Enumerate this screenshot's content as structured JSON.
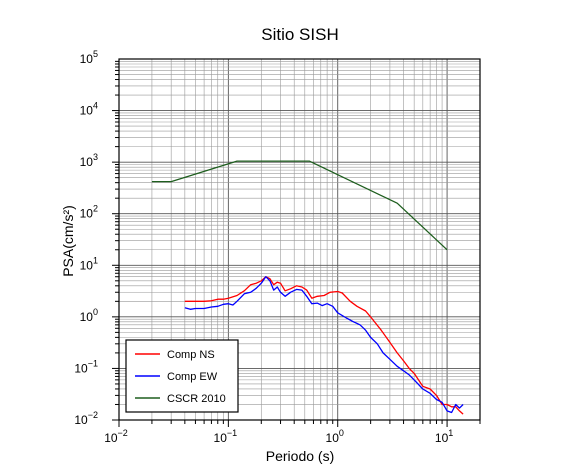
{
  "chart_data": {
    "type": "line",
    "title": "Sitio SISH",
    "xlabel": "Periodo (s)",
    "ylabel": "PSA(cm/s²)",
    "xscale": "log",
    "yscale": "log",
    "xlim": [
      0.01,
      20
    ],
    "ylim": [
      0.01,
      100000
    ],
    "grid": true,
    "legend_position": "bottom-left",
    "x_ticks": [
      {
        "value": 0.01,
        "base": "10",
        "exp": "−2"
      },
      {
        "value": 0.1,
        "base": "10",
        "exp": "−1"
      },
      {
        "value": 1,
        "base": "10",
        "exp": "0"
      },
      {
        "value": 10,
        "base": "10",
        "exp": "1"
      }
    ],
    "y_ticks": [
      {
        "value": 0.01,
        "base": "10",
        "exp": "−2"
      },
      {
        "value": 0.1,
        "base": "10",
        "exp": "−1"
      },
      {
        "value": 1,
        "base": "10",
        "exp": "0"
      },
      {
        "value": 10,
        "base": "10",
        "exp": "1"
      },
      {
        "value": 100,
        "base": "10",
        "exp": "2"
      },
      {
        "value": 1000,
        "base": "10",
        "exp": "3"
      },
      {
        "value": 10000,
        "base": "10",
        "exp": "4"
      },
      {
        "value": 100000,
        "base": "10",
        "exp": "5"
      }
    ],
    "series": [
      {
        "name": "Comp NS",
        "color": "#ff0000",
        "points": [
          [
            0.04,
            2.0
          ],
          [
            0.05,
            2.0
          ],
          [
            0.06,
            2.0
          ],
          [
            0.07,
            2.05
          ],
          [
            0.08,
            2.2
          ],
          [
            0.09,
            2.2
          ],
          [
            0.1,
            2.3
          ],
          [
            0.12,
            2.6
          ],
          [
            0.14,
            3.2
          ],
          [
            0.16,
            4.2
          ],
          [
            0.18,
            4.5
          ],
          [
            0.2,
            5.0
          ],
          [
            0.22,
            6.0
          ],
          [
            0.24,
            5.5
          ],
          [
            0.26,
            4.2
          ],
          [
            0.28,
            4.7
          ],
          [
            0.3,
            4.5
          ],
          [
            0.33,
            3.2
          ],
          [
            0.37,
            3.5
          ],
          [
            0.42,
            4.0
          ],
          [
            0.47,
            3.8
          ],
          [
            0.52,
            3.3
          ],
          [
            0.58,
            2.3
          ],
          [
            0.65,
            2.5
          ],
          [
            0.75,
            2.6
          ],
          [
            0.85,
            3.0
          ],
          [
            1.0,
            3.1
          ],
          [
            1.1,
            2.9
          ],
          [
            1.3,
            2.0
          ],
          [
            1.5,
            1.6
          ],
          [
            1.8,
            1.3
          ],
          [
            2.0,
            1.0
          ],
          [
            2.5,
            0.55
          ],
          [
            3.0,
            0.32
          ],
          [
            3.5,
            0.2
          ],
          [
            4.0,
            0.14
          ],
          [
            4.5,
            0.1
          ],
          [
            5.0,
            0.08
          ],
          [
            6.0,
            0.045
          ],
          [
            7.0,
            0.04
          ],
          [
            8.0,
            0.03
          ],
          [
            9.0,
            0.02
          ],
          [
            10.0,
            0.02
          ],
          [
            11.0,
            0.018
          ],
          [
            12.0,
            0.018
          ],
          [
            13.0,
            0.015
          ],
          [
            14.0,
            0.013
          ]
        ]
      },
      {
        "name": "Comp EW",
        "color": "#0000ff",
        "points": [
          [
            0.04,
            1.5
          ],
          [
            0.045,
            1.4
          ],
          [
            0.05,
            1.45
          ],
          [
            0.06,
            1.45
          ],
          [
            0.07,
            1.55
          ],
          [
            0.08,
            1.6
          ],
          [
            0.09,
            1.75
          ],
          [
            0.1,
            1.8
          ],
          [
            0.11,
            1.7
          ],
          [
            0.12,
            2.0
          ],
          [
            0.14,
            2.8
          ],
          [
            0.16,
            3.0
          ],
          [
            0.18,
            3.6
          ],
          [
            0.2,
            4.5
          ],
          [
            0.22,
            6.0
          ],
          [
            0.24,
            5.0
          ],
          [
            0.26,
            3.3
          ],
          [
            0.28,
            3.8
          ],
          [
            0.3,
            3.0
          ],
          [
            0.33,
            2.5
          ],
          [
            0.37,
            3.0
          ],
          [
            0.42,
            3.4
          ],
          [
            0.47,
            3.3
          ],
          [
            0.52,
            2.5
          ],
          [
            0.58,
            1.8
          ],
          [
            0.65,
            1.85
          ],
          [
            0.72,
            1.65
          ],
          [
            0.8,
            1.8
          ],
          [
            0.9,
            1.6
          ],
          [
            1.0,
            1.2
          ],
          [
            1.2,
            0.95
          ],
          [
            1.4,
            0.8
          ],
          [
            1.6,
            0.7
          ],
          [
            1.8,
            0.55
          ],
          [
            2.0,
            0.4
          ],
          [
            2.3,
            0.3
          ],
          [
            2.6,
            0.2
          ],
          [
            3.0,
            0.15
          ],
          [
            3.5,
            0.11
          ],
          [
            4.0,
            0.09
          ],
          [
            4.5,
            0.075
          ],
          [
            5.0,
            0.06
          ],
          [
            6.0,
            0.04
          ],
          [
            7.0,
            0.033
          ],
          [
            8.0,
            0.025
          ],
          [
            9.0,
            0.022
          ],
          [
            10.0,
            0.015
          ],
          [
            11.0,
            0.014
          ],
          [
            12.0,
            0.02
          ],
          [
            13.0,
            0.017
          ],
          [
            14.0,
            0.02
          ]
        ]
      },
      {
        "name": "CSCR 2010",
        "color": "#1e5e1e",
        "points": [
          [
            0.02,
            420
          ],
          [
            0.03,
            420
          ],
          [
            0.12,
            1050
          ],
          [
            0.55,
            1050
          ],
          [
            3.5,
            160
          ],
          [
            10.0,
            20
          ]
        ]
      }
    ]
  }
}
